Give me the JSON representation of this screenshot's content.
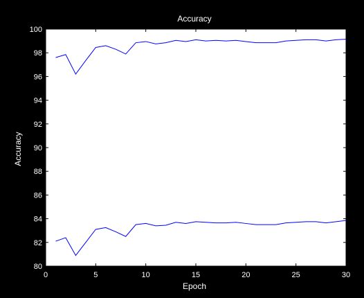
{
  "chart_data": {
    "type": "line",
    "title": "Accuracy",
    "xlabel": "Epoch",
    "ylabel": "Accuracy",
    "xlim": [
      0,
      30
    ],
    "ylim": [
      80,
      100
    ],
    "x_ticks": [
      0,
      5,
      10,
      15,
      20,
      25,
      30
    ],
    "y_ticks": [
      80,
      82,
      84,
      86,
      88,
      90,
      92,
      94,
      96,
      98,
      100
    ],
    "grid": false,
    "legend": "none",
    "x": [
      1,
      2,
      3,
      4,
      5,
      6,
      7,
      8,
      9,
      10,
      11,
      12,
      13,
      14,
      15,
      16,
      17,
      18,
      19,
      20,
      21,
      22,
      23,
      24,
      25,
      26,
      27,
      28,
      29,
      30
    ],
    "series": [
      {
        "values": [
          97.6,
          97.85,
          96.2,
          97.35,
          98.45,
          98.6,
          98.3,
          97.9,
          98.85,
          98.95,
          98.75,
          98.85,
          99.05,
          98.95,
          99.1,
          99.0,
          99.05,
          99.0,
          99.05,
          98.95,
          98.85,
          98.85,
          98.85,
          99.0,
          99.05,
          99.1,
          99.1,
          99.0,
          99.1,
          99.15
        ],
        "color": "#0000ff"
      },
      {
        "values": [
          82.1,
          82.4,
          80.9,
          82.0,
          83.1,
          83.25,
          82.9,
          82.5,
          83.5,
          83.6,
          83.4,
          83.45,
          83.7,
          83.6,
          83.75,
          83.7,
          83.65,
          83.65,
          83.7,
          83.6,
          83.5,
          83.5,
          83.5,
          83.65,
          83.7,
          83.75,
          83.75,
          83.65,
          83.75,
          83.85
        ],
        "color": "#0000ff"
      }
    ]
  },
  "colors": {
    "background": "#000000",
    "axes_face": "#ffffff",
    "axes_edge": "#000000",
    "text": "#ffffff",
    "line": "#0000ff"
  }
}
